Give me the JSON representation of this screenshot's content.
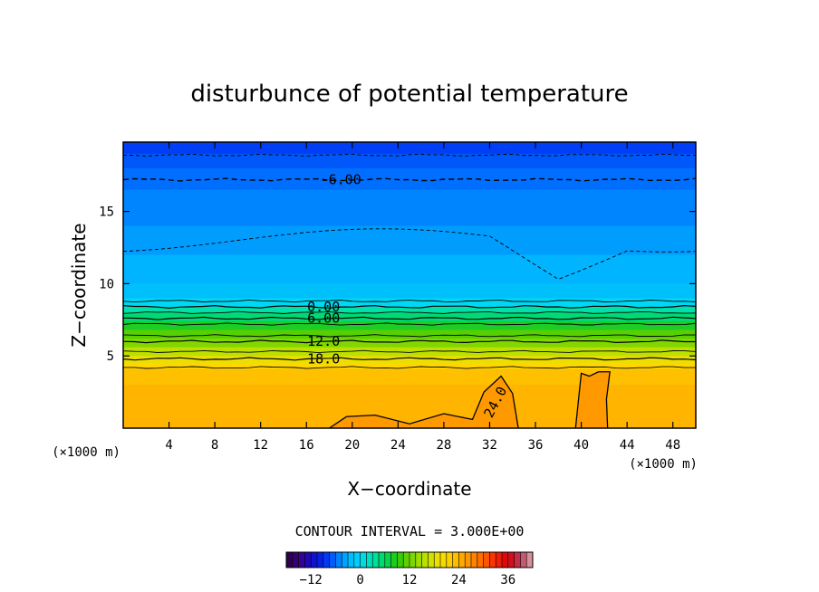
{
  "chart_data": {
    "type": "heatmap",
    "title": "disturbunce of potential temperature",
    "xlabel": "X−coordinate",
    "ylabel": "Z−coordinate",
    "x_unit": "(×1000 m)",
    "y_unit": "(×1000 m)",
    "xlim": [
      0,
      50
    ],
    "ylim": [
      0,
      19.8
    ],
    "x_ticks": [
      4,
      8,
      12,
      16,
      20,
      24,
      28,
      32,
      36,
      40,
      44,
      48
    ],
    "y_ticks": [
      5,
      10,
      15
    ],
    "x_tick_labels": [
      "4",
      "8",
      "12",
      "16",
      "20",
      "24",
      "28",
      "32",
      "36",
      "40",
      "44",
      "48"
    ],
    "y_tick_labels": [
      "5",
      "10",
      "15"
    ],
    "field_layers": [
      {
        "z_top": 19.8,
        "value": -8
      },
      {
        "z_top": 19.0,
        "value": -7
      },
      {
        "z_top": 18.0,
        "value": -6
      },
      {
        "z_top": 16.5,
        "value": -5
      },
      {
        "z_top": 14.0,
        "value": -4
      },
      {
        "z_top": 12.0,
        "value": -3
      },
      {
        "z_top": 10.0,
        "value": -2
      },
      {
        "z_top": 9.0,
        "value": 0
      },
      {
        "z_top": 8.4,
        "value": 3
      },
      {
        "z_top": 8.0,
        "value": 5
      },
      {
        "z_top": 7.4,
        "value": 8
      },
      {
        "z_top": 6.8,
        "value": 11
      },
      {
        "z_top": 6.2,
        "value": 13
      },
      {
        "z_top": 5.6,
        "value": 16
      },
      {
        "z_top": 5.0,
        "value": 19
      },
      {
        "z_top": 4.5,
        "value": 21
      },
      {
        "z_top": 4.1,
        "value": 23
      },
      {
        "z_top": 3.0,
        "value": 24
      }
    ],
    "contours": [
      {
        "label": "-6.00",
        "z": 17.2,
        "style": "dashed"
      },
      {
        "label": "0.00",
        "z": 8.4,
        "style": "solid"
      },
      {
        "label": "6.00",
        "z": 7.6,
        "style": "solid"
      },
      {
        "label": "12.0",
        "z": 6.0,
        "style": "solid"
      },
      {
        "label": "18.0",
        "z": 4.8,
        "style": "solid"
      },
      {
        "label": "24.0",
        "z": 1.8,
        "style": "solid"
      }
    ],
    "contour_interval_text": "CONTOUR INTERVAL = 3.000E+00",
    "colorbar": {
      "min": -18,
      "max": 42,
      "tick_values": [
        -12,
        0,
        12,
        24,
        36
      ],
      "tick_labels": [
        "−12",
        "0",
        "12",
        "24",
        "36"
      ]
    },
    "grid": false,
    "colors": {
      "top": "#0a3cff",
      "upper": "#14aaff",
      "mid": "#00c8ff",
      "green": "#2cd81c",
      "yellow": "#f0e010",
      "orange": "#ffb600"
    }
  }
}
